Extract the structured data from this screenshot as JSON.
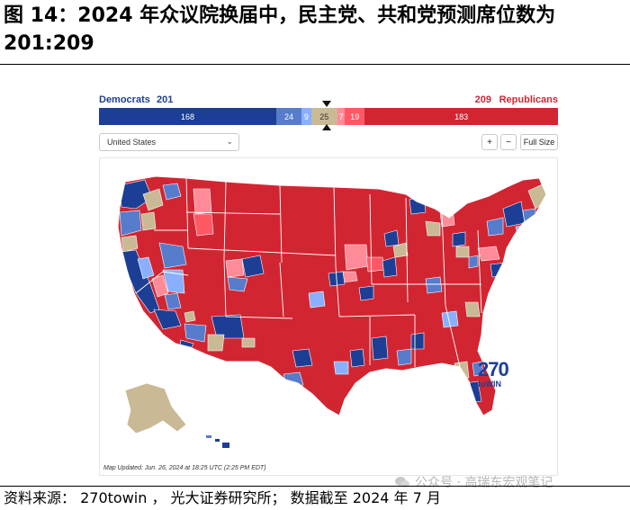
{
  "figure": {
    "title": "图 14：2024 年众议院换届中，民主党、共和党预测席位数为 201:209",
    "source": "资料来源： 270towin ， 光大证券研究所； 数据截至 2024 年 7 月",
    "watermark": "公众号 · 高瑞东宏观笔记"
  },
  "tally": {
    "dem_label": "Democrats",
    "dem_total": "201",
    "rep_total": "209",
    "rep_label": "Republicans"
  },
  "bar_segments": [
    {
      "label": "168",
      "seats": 168,
      "category": "safe-dem",
      "color": "#1c3f95"
    },
    {
      "label": "24",
      "seats": 24,
      "category": "likely-dem",
      "color": "#577ccc"
    },
    {
      "label": "9",
      "seats": 9,
      "category": "lean-dem",
      "color": "#8aafff"
    },
    {
      "label": "25",
      "seats": 25,
      "category": "tossup",
      "color": "#c9b995"
    },
    {
      "label": "7",
      "seats": 7,
      "category": "lean-rep",
      "color": "#ff8b98"
    },
    {
      "label": "19",
      "seats": 19,
      "category": "likely-rep",
      "color": "#ff5865"
    },
    {
      "label": "183",
      "seats": 183,
      "category": "safe-rep",
      "color": "#d22532"
    }
  ],
  "controls": {
    "state_select": "United States",
    "zoom_in": "+",
    "zoom_out": "−",
    "full_size": "Full Size"
  },
  "map": {
    "updated_note": "Map Updated: Jun. 26, 2024 at 18:25 UTC (2:25 PM EDT)",
    "logo_number": "270",
    "logo_sub": "toWIN",
    "colors": {
      "safe_dem": "#1c3f95",
      "likely_dem": "#577ccc",
      "lean_dem": "#8aafff",
      "tossup": "#c9b995",
      "lean_rep": "#ff8b98",
      "likely_rep": "#ff5865",
      "safe_rep": "#d22532"
    }
  }
}
